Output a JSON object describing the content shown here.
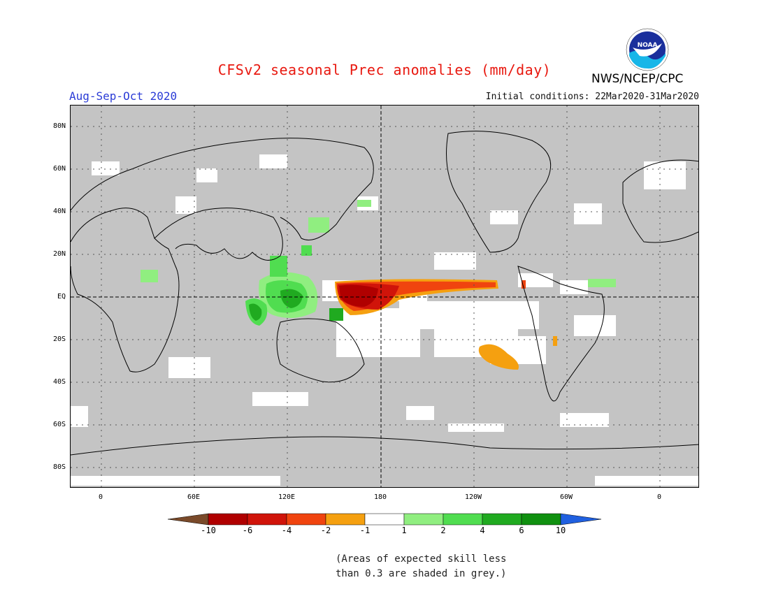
{
  "title": "CFSv2 seasonal Prec anomalies (mm/day)",
  "season": "Aug-Sep-Oct 2020",
  "initial_conditions": "Initial conditions: 22Mar2020-31Mar2020",
  "agency": "NWS/NCEP/CPC",
  "logo_text": "NOAA",
  "lat_labels": [
    "80N",
    "60N",
    "40N",
    "20N",
    "EQ",
    "20S",
    "40S",
    "60S",
    "80S"
  ],
  "lon_labels": [
    "0",
    "60E",
    "120E",
    "180",
    "120W",
    "60W",
    "0"
  ],
  "colorbar": {
    "labels": [
      "-10",
      "-6",
      "-4",
      "-2",
      "-1",
      "1",
      "2",
      "4",
      "6",
      "10"
    ],
    "colors": [
      "#7a4a2a",
      "#b00000",
      "#d0140a",
      "#f0440f",
      "#f5a010",
      "#ffffff",
      "#90ee80",
      "#50dd50",
      "#20aa20",
      "#109010",
      "#2060e0"
    ]
  },
  "note_line1": "(Areas of expected skill less",
  "note_line2": "than 0.3 are shaded in grey.)",
  "colors": {
    "land_outline": "#000000",
    "grey": "#c4c4c4",
    "title": "#e8180f",
    "season": "#2a3bd6"
  }
}
